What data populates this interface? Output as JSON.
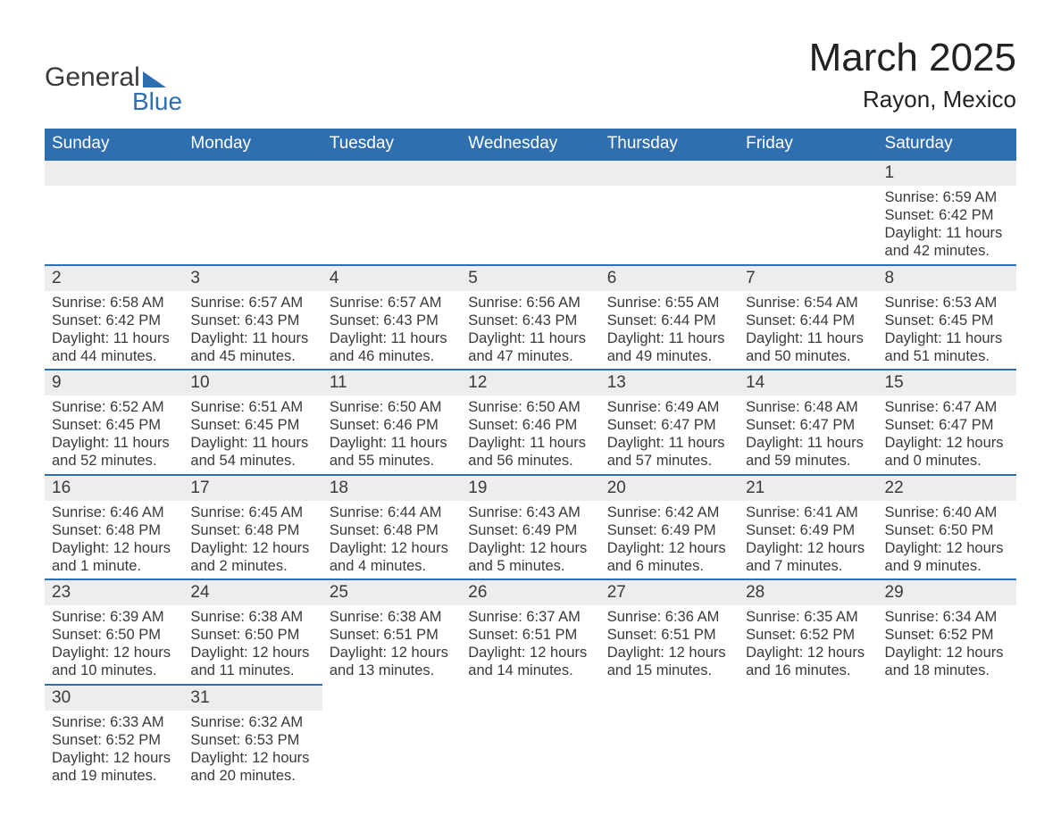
{
  "logo": {
    "text1": "General",
    "text2": "Blue",
    "triangle_color": "#2f6fb0"
  },
  "title": {
    "month": "March 2025",
    "location": "Rayon, Mexico"
  },
  "colors": {
    "header_bg": "#2f6fb0",
    "header_text": "#ffffff",
    "daynum_bg": "#ededed",
    "row_border": "#2f6fb0",
    "body_text": "#3a3a3a",
    "page_bg": "#ffffff"
  },
  "fonts": {
    "title_month_size_pt": 33,
    "title_location_size_pt": 20,
    "header_cell_size_pt": 14,
    "daynum_size_pt": 14,
    "body_size_pt": 12
  },
  "weekday_headers": [
    "Sunday",
    "Monday",
    "Tuesday",
    "Wednesday",
    "Thursday",
    "Friday",
    "Saturday"
  ],
  "weeks": [
    [
      null,
      null,
      null,
      null,
      null,
      null,
      {
        "n": "1",
        "sunrise": "6:59 AM",
        "sunset": "6:42 PM",
        "daylight": "11 hours and 42 minutes."
      }
    ],
    [
      {
        "n": "2",
        "sunrise": "6:58 AM",
        "sunset": "6:42 PM",
        "daylight": "11 hours and 44 minutes."
      },
      {
        "n": "3",
        "sunrise": "6:57 AM",
        "sunset": "6:43 PM",
        "daylight": "11 hours and 45 minutes."
      },
      {
        "n": "4",
        "sunrise": "6:57 AM",
        "sunset": "6:43 PM",
        "daylight": "11 hours and 46 minutes."
      },
      {
        "n": "5",
        "sunrise": "6:56 AM",
        "sunset": "6:43 PM",
        "daylight": "11 hours and 47 minutes."
      },
      {
        "n": "6",
        "sunrise": "6:55 AM",
        "sunset": "6:44 PM",
        "daylight": "11 hours and 49 minutes."
      },
      {
        "n": "7",
        "sunrise": "6:54 AM",
        "sunset": "6:44 PM",
        "daylight": "11 hours and 50 minutes."
      },
      {
        "n": "8",
        "sunrise": "6:53 AM",
        "sunset": "6:45 PM",
        "daylight": "11 hours and 51 minutes."
      }
    ],
    [
      {
        "n": "9",
        "sunrise": "6:52 AM",
        "sunset": "6:45 PM",
        "daylight": "11 hours and 52 minutes."
      },
      {
        "n": "10",
        "sunrise": "6:51 AM",
        "sunset": "6:45 PM",
        "daylight": "11 hours and 54 minutes."
      },
      {
        "n": "11",
        "sunrise": "6:50 AM",
        "sunset": "6:46 PM",
        "daylight": "11 hours and 55 minutes."
      },
      {
        "n": "12",
        "sunrise": "6:50 AM",
        "sunset": "6:46 PM",
        "daylight": "11 hours and 56 minutes."
      },
      {
        "n": "13",
        "sunrise": "6:49 AM",
        "sunset": "6:47 PM",
        "daylight": "11 hours and 57 minutes."
      },
      {
        "n": "14",
        "sunrise": "6:48 AM",
        "sunset": "6:47 PM",
        "daylight": "11 hours and 59 minutes."
      },
      {
        "n": "15",
        "sunrise": "6:47 AM",
        "sunset": "6:47 PM",
        "daylight": "12 hours and 0 minutes."
      }
    ],
    [
      {
        "n": "16",
        "sunrise": "6:46 AM",
        "sunset": "6:48 PM",
        "daylight": "12 hours and 1 minute."
      },
      {
        "n": "17",
        "sunrise": "6:45 AM",
        "sunset": "6:48 PM",
        "daylight": "12 hours and 2 minutes."
      },
      {
        "n": "18",
        "sunrise": "6:44 AM",
        "sunset": "6:48 PM",
        "daylight": "12 hours and 4 minutes."
      },
      {
        "n": "19",
        "sunrise": "6:43 AM",
        "sunset": "6:49 PM",
        "daylight": "12 hours and 5 minutes."
      },
      {
        "n": "20",
        "sunrise": "6:42 AM",
        "sunset": "6:49 PM",
        "daylight": "12 hours and 6 minutes."
      },
      {
        "n": "21",
        "sunrise": "6:41 AM",
        "sunset": "6:49 PM",
        "daylight": "12 hours and 7 minutes."
      },
      {
        "n": "22",
        "sunrise": "6:40 AM",
        "sunset": "6:50 PM",
        "daylight": "12 hours and 9 minutes."
      }
    ],
    [
      {
        "n": "23",
        "sunrise": "6:39 AM",
        "sunset": "6:50 PM",
        "daylight": "12 hours and 10 minutes."
      },
      {
        "n": "24",
        "sunrise": "6:38 AM",
        "sunset": "6:50 PM",
        "daylight": "12 hours and 11 minutes."
      },
      {
        "n": "25",
        "sunrise": "6:38 AM",
        "sunset": "6:51 PM",
        "daylight": "12 hours and 13 minutes."
      },
      {
        "n": "26",
        "sunrise": "6:37 AM",
        "sunset": "6:51 PM",
        "daylight": "12 hours and 14 minutes."
      },
      {
        "n": "27",
        "sunrise": "6:36 AM",
        "sunset": "6:51 PM",
        "daylight": "12 hours and 15 minutes."
      },
      {
        "n": "28",
        "sunrise": "6:35 AM",
        "sunset": "6:52 PM",
        "daylight": "12 hours and 16 minutes."
      },
      {
        "n": "29",
        "sunrise": "6:34 AM",
        "sunset": "6:52 PM",
        "daylight": "12 hours and 18 minutes."
      }
    ],
    [
      {
        "n": "30",
        "sunrise": "6:33 AM",
        "sunset": "6:52 PM",
        "daylight": "12 hours and 19 minutes."
      },
      {
        "n": "31",
        "sunrise": "6:32 AM",
        "sunset": "6:53 PM",
        "daylight": "12 hours and 20 minutes."
      },
      null,
      null,
      null,
      null,
      null
    ]
  ],
  "labels": {
    "sunrise": "Sunrise: ",
    "sunset": "Sunset: ",
    "daylight": "Daylight: "
  }
}
